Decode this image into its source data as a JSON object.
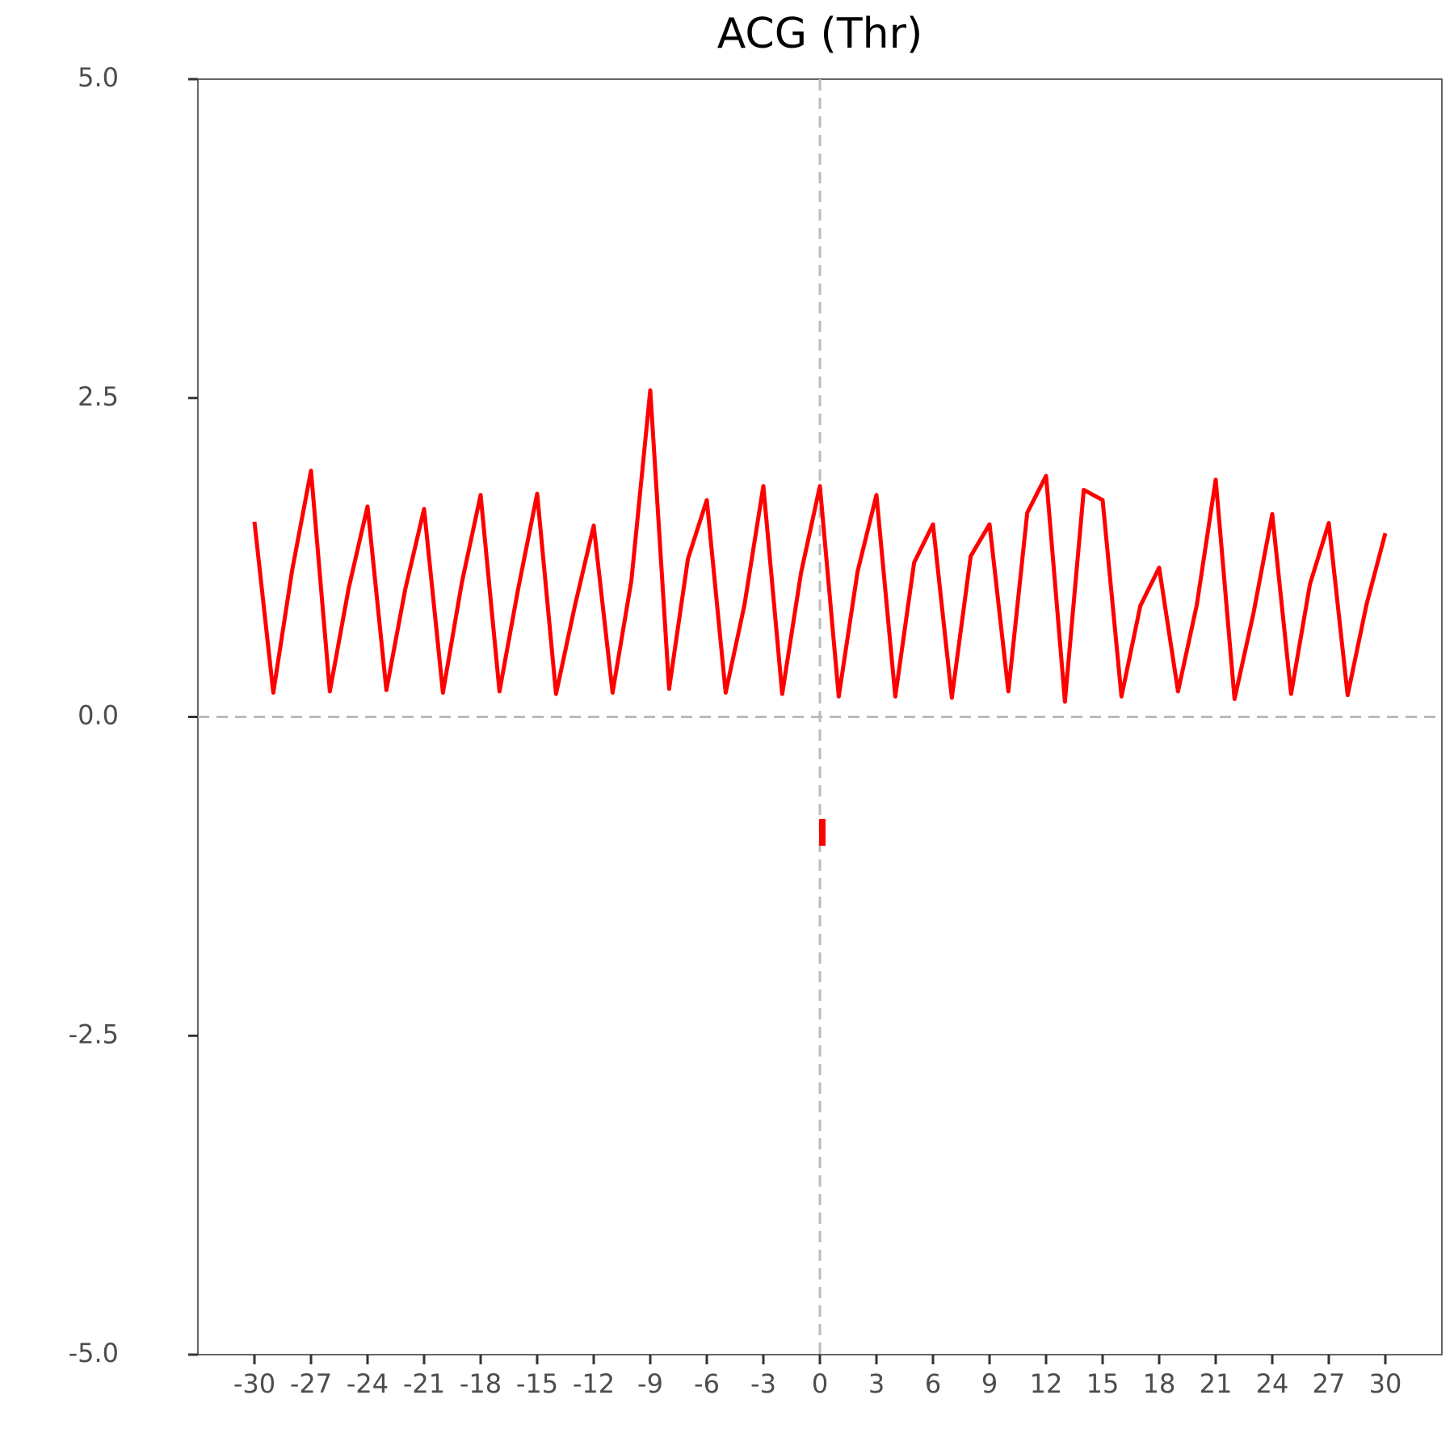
{
  "chart_data": {
    "type": "line",
    "title": "ACG (Thr)",
    "x": [
      -30,
      -29,
      -28,
      -27,
      -26,
      -25,
      -24,
      -23,
      -22,
      -21,
      -20,
      -19,
      -18,
      -17,
      -16,
      -15,
      -14,
      -13,
      -12,
      -11,
      -10,
      -9,
      -8,
      -7,
      -6,
      -5,
      -4,
      -3,
      -2,
      -1,
      0,
      1,
      2,
      3,
      4,
      5,
      6,
      7,
      8,
      9,
      10,
      11,
      12,
      13,
      14,
      15,
      16,
      17,
      18,
      19,
      20,
      21,
      22,
      23,
      24,
      25,
      26,
      27,
      28,
      29,
      30
    ],
    "series": [
      {
        "color": "#ff0000",
        "values": [
          1.53,
          0.19,
          1.15,
          1.93,
          0.2,
          1.01,
          1.65,
          0.21,
          1.0,
          1.63,
          0.19,
          1.05,
          1.74,
          0.2,
          1.01,
          1.75,
          0.18,
          0.87,
          1.5,
          0.19,
          1.07,
          2.56,
          0.22,
          1.24,
          1.7,
          0.19,
          0.88,
          1.81,
          0.18,
          1.13,
          1.81,
          0.16,
          1.14,
          1.74,
          0.16,
          1.21,
          1.51,
          0.15,
          1.26,
          1.51,
          0.2,
          1.6,
          1.89,
          0.12,
          1.78,
          1.7,
          0.16,
          0.87,
          1.17,
          0.2,
          0.88,
          1.86,
          0.14,
          0.81,
          1.59,
          0.18,
          1.04,
          1.52,
          0.17,
          0.88,
          1.44
        ]
      }
    ],
    "segments": [
      {
        "x": 0,
        "y1": -0.8,
        "y2": -1.01,
        "color": "#ff0000"
      }
    ],
    "reference_lines": {
      "x": 0,
      "y": 0,
      "color": "#bbbbbb"
    },
    "xlim": [
      -33,
      33
    ],
    "ylim": [
      -5,
      5
    ],
    "xticks": [
      -30,
      -27,
      -24,
      -21,
      -18,
      -15,
      -12,
      -9,
      -6,
      -3,
      0,
      3,
      6,
      9,
      12,
      15,
      18,
      21,
      24,
      27,
      30
    ],
    "yticks": [
      {
        "value": 5,
        "label": "5.0"
      },
      {
        "value": 2.5,
        "label": "2.5"
      },
      {
        "value": 0,
        "label": "0.0"
      },
      {
        "value": -2.5,
        "label": "-2.5"
      },
      {
        "value": -5,
        "label": "-5.0"
      }
    ]
  }
}
